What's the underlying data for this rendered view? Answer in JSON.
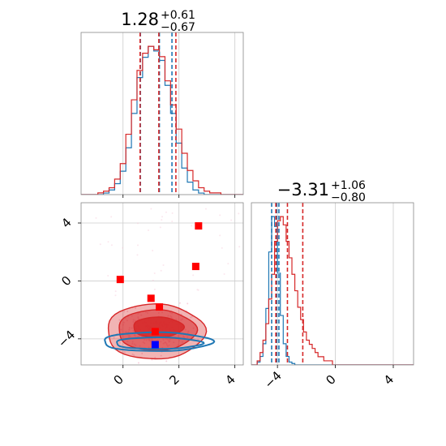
{
  "chart_data": {
    "type": "corner",
    "colors": {
      "series_a": "#d62728",
      "series_b": "#1f77b4",
      "marker_red": "#ff0000",
      "marker_blue": "#0000ff",
      "grid": "#cccccc"
    },
    "grid": true,
    "param1": {
      "title": {
        "value": "1.28",
        "plus": "+0.61",
        "minus": "−0.67"
      },
      "xlim": [
        -1.5,
        4.3
      ],
      "ticks": [
        0,
        2,
        4
      ],
      "tick_labels": [
        "0",
        "2",
        "4"
      ],
      "hist_bins": [
        -1.5,
        -1.3,
        -1.1,
        -0.9,
        -0.7,
        -0.5,
        -0.3,
        -0.1,
        0.1,
        0.3,
        0.5,
        0.7,
        0.9,
        1.1,
        1.3,
        1.5,
        1.7,
        1.9,
        2.1,
        2.3,
        2.5,
        2.7,
        2.9,
        3.1,
        3.3,
        3.5,
        3.7,
        3.9,
        4.1,
        4.3
      ],
      "hist_red": [
        0,
        0,
        0,
        1,
        2,
        4,
        9,
        18,
        35,
        55,
        72,
        82,
        86,
        84,
        80,
        66,
        52,
        38,
        24,
        14,
        8,
        4,
        2,
        1,
        1,
        0,
        0,
        0,
        0
      ],
      "hist_blue": [
        0,
        0,
        0,
        0,
        1,
        3,
        7,
        15,
        30,
        52,
        75,
        88,
        95,
        92,
        86,
        70,
        52,
        33,
        17,
        8,
        3,
        1,
        0,
        0,
        0,
        0,
        0,
        0,
        0
      ],
      "quantiles_red": [
        0.61,
        1.28,
        1.89
      ],
      "quantiles_blue": [
        0.62,
        1.3,
        1.75
      ]
    },
    "param2": {
      "title": {
        "value": "−3.31",
        "plus": "+1.06",
        "minus": "−0.80"
      },
      "xlim": [
        -5.8,
        5.4
      ],
      "ticks": [
        -4,
        0,
        4
      ],
      "tick_labels": [
        "−4",
        "0",
        "4"
      ],
      "hist_bins": [
        -5.8,
        -5.6,
        -5.4,
        -5.2,
        -5.0,
        -4.8,
        -4.6,
        -4.4,
        -4.2,
        -4.0,
        -3.8,
        -3.6,
        -3.4,
        -3.2,
        -3.0,
        -2.8,
        -2.6,
        -2.4,
        -2.2,
        -2.0,
        -1.8,
        -1.6,
        -1.4,
        -1.2,
        -1.0,
        -0.8,
        -0.6,
        -0.4,
        -0.2,
        0.0,
        0.2,
        0.4,
        0.6,
        0.8,
        1.0,
        1.2,
        1.4,
        1.6,
        1.8,
        2.0,
        2.2,
        2.4,
        2.6,
        2.8,
        3.0,
        3.2,
        3.4,
        3.6,
        3.8,
        4.0,
        4.2,
        4.4,
        4.6,
        4.8,
        5.0,
        5.2,
        5.4
      ],
      "hist_red": [
        0,
        0,
        1,
        3,
        6,
        10,
        16,
        22,
        30,
        35,
        36,
        34,
        30,
        26,
        22,
        18,
        14,
        11,
        8,
        6,
        5,
        4,
        3,
        2,
        2,
        1,
        1,
        1,
        0,
        0,
        0,
        0,
        0,
        0,
        0,
        0,
        0,
        0,
        0,
        0,
        0,
        0,
        0,
        0,
        0,
        0,
        0,
        0,
        0,
        0,
        0,
        0,
        0,
        0,
        0,
        0
      ],
      "hist_blue": [
        0,
        0,
        2,
        6,
        15,
        40,
        80,
        105,
        98,
        65,
        35,
        15,
        6,
        2,
        1,
        0,
        0,
        0,
        0,
        0,
        0,
        0,
        0,
        0,
        0,
        0,
        0,
        0,
        0,
        0,
        0,
        0,
        0,
        0,
        0,
        0,
        0,
        0,
        0,
        0,
        0,
        0,
        0,
        0,
        0,
        0,
        0,
        0,
        0,
        0,
        0,
        0,
        0,
        0,
        0,
        0
      ],
      "quantiles_red": [
        -4.11,
        -3.31,
        -2.25
      ],
      "quantiles_blue": [
        -4.4,
        -4.05,
        -3.9
      ]
    },
    "joint": {
      "xlim": [
        -1.5,
        4.3
      ],
      "ylim": [
        -5.8,
        5.4
      ],
      "xticks": [
        0,
        2,
        4
      ],
      "yticks": [
        -4,
        0,
        4
      ],
      "xtick_labels": [
        "0",
        "2",
        "4"
      ],
      "ytick_labels": [
        "−4",
        "0",
        "4"
      ],
      "contours_red": [
        {
          "cx": 1.25,
          "cy": -3.2,
          "rx": 0.9,
          "ry": 0.7,
          "alpha": 0.85
        },
        {
          "cx": 1.2,
          "cy": -3.4,
          "rx": 1.4,
          "ry": 1.4,
          "alpha": 0.55
        },
        {
          "cx": 1.15,
          "cy": -3.5,
          "rx": 1.75,
          "ry": 1.9,
          "alpha": 0.35
        }
      ],
      "contours_blue": [
        {
          "cx": 1.25,
          "cy": -4.3,
          "rx": 1.55,
          "ry": 0.4
        },
        {
          "cx": 1.2,
          "cy": -4.2,
          "rx": 1.95,
          "ry": 0.65
        }
      ],
      "markers_red": [
        [
          -0.1,
          0.1
        ],
        [
          1.0,
          -1.2
        ],
        [
          1.3,
          -1.8
        ],
        [
          1.15,
          -3.5
        ],
        [
          2.6,
          1.0
        ],
        [
          2.7,
          3.8
        ]
      ],
      "markers_blue": [
        [
          1.15,
          -4.4
        ]
      ]
    }
  }
}
